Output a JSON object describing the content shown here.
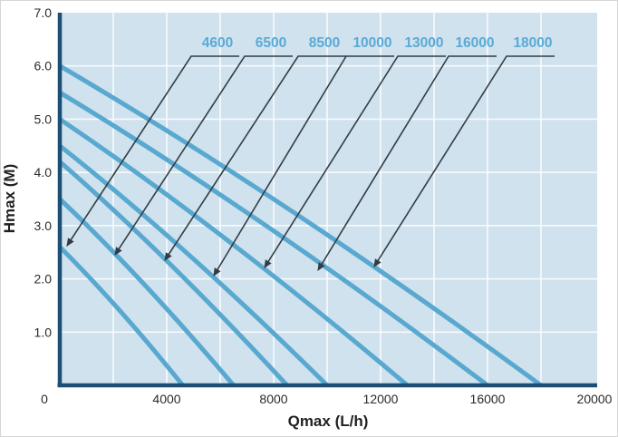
{
  "chart_data": {
    "type": "line",
    "title": "",
    "xlabel": "Qmax (L/h)",
    "ylabel": "Hmax (M)",
    "xlim": [
      0,
      20000
    ],
    "ylim": [
      0,
      7
    ],
    "grid": {
      "on": true,
      "x_step": 2000,
      "y_step": 1
    },
    "legend_position": "none",
    "x_ticks": [
      {
        "label": "0",
        "value": 0
      },
      {
        "label": "4000",
        "value": 4000
      },
      {
        "label": "8000",
        "value": 8000
      },
      {
        "label": "12000",
        "value": 12000
      },
      {
        "label": "16000",
        "value": 16000
      },
      {
        "label": "20000",
        "value": 20000
      }
    ],
    "y_ticks": [
      {
        "label": "7.0",
        "value": 7
      },
      {
        "label": "6.0",
        "value": 6
      },
      {
        "label": "5.0",
        "value": 5
      },
      {
        "label": "4.0",
        "value": 4
      },
      {
        "label": "3.0",
        "value": 3
      },
      {
        "label": "2.0",
        "value": 2
      },
      {
        "label": "1.0",
        "value": 1
      }
    ],
    "series": [
      {
        "name": "4600",
        "hmax_m": 2.6,
        "qmax_lh": 4600,
        "points": [
          [
            0,
            2.6
          ],
          [
            4600,
            0
          ]
        ]
      },
      {
        "name": "6500",
        "hmax_m": 3.5,
        "qmax_lh": 6500,
        "points": [
          [
            0,
            3.5
          ],
          [
            6500,
            0
          ]
        ]
      },
      {
        "name": "8500",
        "hmax_m": 4.2,
        "qmax_lh": 8500,
        "points": [
          [
            0,
            4.2
          ],
          [
            8500,
            0
          ]
        ]
      },
      {
        "name": "10000",
        "hmax_m": 4.5,
        "qmax_lh": 10000,
        "points": [
          [
            0,
            4.5
          ],
          [
            10000,
            0
          ]
        ]
      },
      {
        "name": "13000",
        "hmax_m": 5.0,
        "qmax_lh": 13000,
        "points": [
          [
            0,
            5.0
          ],
          [
            13000,
            0
          ]
        ]
      },
      {
        "name": "16000",
        "hmax_m": 5.5,
        "qmax_lh": 16000,
        "points": [
          [
            0,
            5.5
          ],
          [
            16000,
            0
          ]
        ]
      },
      {
        "name": "18000",
        "hmax_m": 6.0,
        "qmax_lh": 18000,
        "points": [
          [
            0,
            6.0
          ],
          [
            18000,
            0
          ]
        ]
      }
    ],
    "callouts": [
      {
        "label": "4600",
        "label_cx": 239,
        "tip": [
          73,
          270
        ]
      },
      {
        "label": "6500",
        "label_cx": 298,
        "tip": [
          126,
          280
        ]
      },
      {
        "label": "8500",
        "label_cx": 357,
        "tip": [
          181,
          286
        ]
      },
      {
        "label": "10000",
        "label_cx": 410,
        "tip": [
          235,
          303
        ]
      },
      {
        "label": "13000",
        "label_cx": 467,
        "tip": [
          291,
          294
        ]
      },
      {
        "label": "16000",
        "label_cx": 523,
        "tip": [
          350,
          297
        ]
      },
      {
        "label": "18000",
        "label_cx": 587,
        "tip": [
          412,
          293
        ]
      }
    ],
    "colors": {
      "plot_bg": "#cfe2ee",
      "grid": "#ffffff",
      "axis": "#1d4e73",
      "curve": "#58a8cf",
      "callout_text": "#5baad6",
      "leader": "#333c45",
      "tick_text": "#2a2a2a"
    }
  }
}
